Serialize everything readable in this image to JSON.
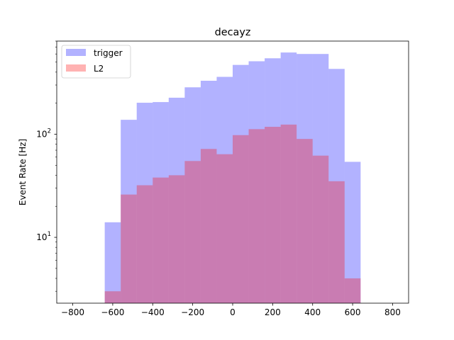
{
  "chart_data": {
    "type": "histogram",
    "title": "decayz",
    "xlabel": "",
    "ylabel": "Event Rate [Hz]",
    "yscale": "log",
    "xlim": [
      -880,
      880
    ],
    "ylim": [
      2.3,
      800
    ],
    "bin_edges": [
      -800,
      -720,
      -640,
      -560,
      -480,
      -400,
      -320,
      -240,
      -160,
      -80,
      0,
      80,
      160,
      240,
      320,
      400,
      480,
      560,
      640,
      720,
      800
    ],
    "x_ticks": [
      "-800",
      "-600",
      "-400",
      "-200",
      "0",
      "200",
      "400",
      "600",
      "800"
    ],
    "x_tick_values": [
      -800,
      -600,
      -400,
      -200,
      0,
      200,
      400,
      600,
      800
    ],
    "y_ticks": [
      "10^1",
      "10^2"
    ],
    "y_tick_values": [
      10,
      100
    ],
    "legend_position": "top-left",
    "series": [
      {
        "name": "trigger",
        "color": "#0000ff",
        "alpha": 0.3,
        "values": [
          0,
          0,
          14,
          138,
          202,
          205,
          226,
          285,
          330,
          360,
          470,
          510,
          545,
          620,
          600,
          600,
          430,
          54,
          0,
          0
        ]
      },
      {
        "name": "L2",
        "color": "#ff0000",
        "alpha": 0.3,
        "values": [
          0,
          0,
          3,
          26,
          32,
          38,
          40,
          55,
          72,
          64,
          98,
          112,
          118,
          124,
          90,
          62,
          35,
          4,
          0,
          0
        ]
      }
    ]
  }
}
